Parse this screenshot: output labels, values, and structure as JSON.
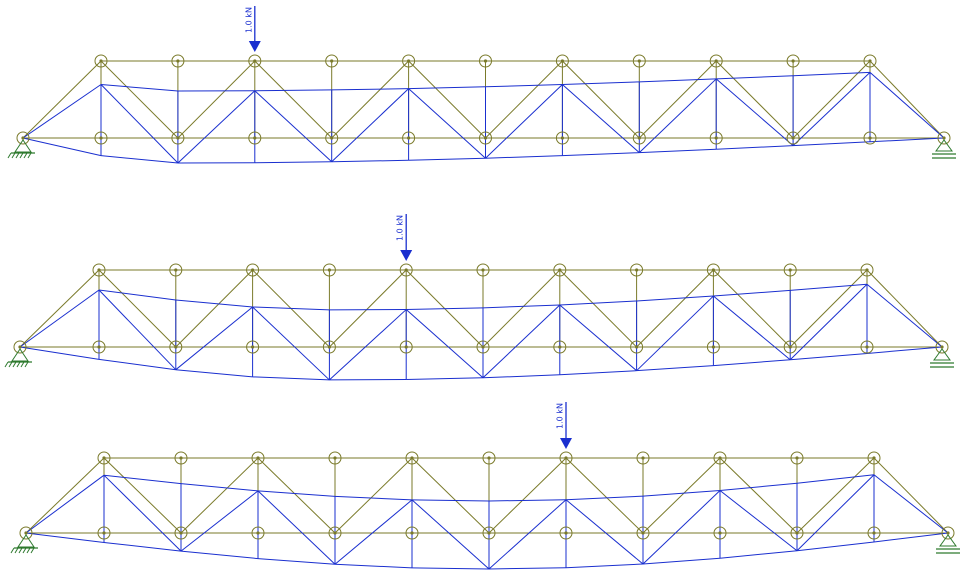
{
  "colors": {
    "undeformed": "#7a7a2a",
    "deformed": "#1a2fcf",
    "load": "#1a2fcf",
    "support": "#2f7a2f",
    "node": "#7a7a2a"
  },
  "panels": [
    {
      "load_label": "1.0 kN",
      "load_node": 2,
      "deflection": {
        "shape": "load-shifted",
        "load_frac": 0.17
      }
    },
    {
      "load_label": "1.0 kN",
      "load_node": 4,
      "deflection": {
        "shape": "load-shifted",
        "load_frac": 0.35
      }
    },
    {
      "load_label": "1.0 kN",
      "load_node": 6,
      "deflection": {
        "shape": "load-shifted",
        "load_frac": 0.5
      }
    }
  ],
  "truss": {
    "top_nodes": 11,
    "bottom_nodes": 12,
    "end_supports": [
      "pin",
      "roller"
    ]
  }
}
